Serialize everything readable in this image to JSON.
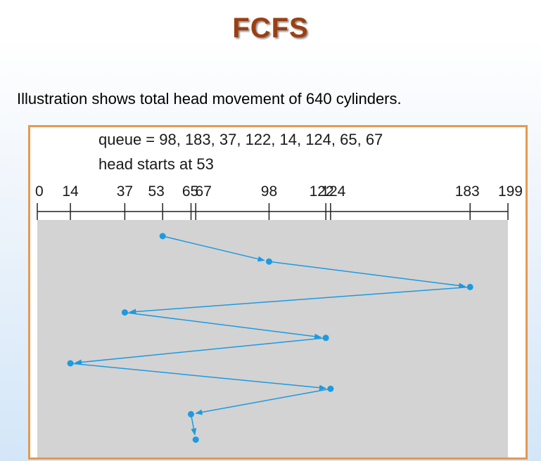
{
  "slide": {
    "title": "FCFS",
    "caption": "Illustration shows total head movement of 640 cylinders."
  },
  "diagram": {
    "queue_text": "queue = 98, 183, 37, 122, 14, 124, 65, 67",
    "head_text": "head starts at 53",
    "scale_min": 0,
    "scale_max": 199,
    "tick_labels": [
      "0",
      "14",
      "37",
      "53",
      "65",
      "67",
      "98",
      "122",
      "124",
      "183",
      "199"
    ],
    "tick_values": [
      0,
      14,
      37,
      53,
      65,
      67,
      98,
      122,
      124,
      183,
      199
    ],
    "head_sequence": [
      53,
      98,
      183,
      37,
      122,
      14,
      124,
      65,
      67
    ],
    "colors": {
      "frame": "#e39a52",
      "plot_background": "#d3d3d3",
      "path": "#1d9ae0",
      "axis": "#222222"
    }
  }
}
